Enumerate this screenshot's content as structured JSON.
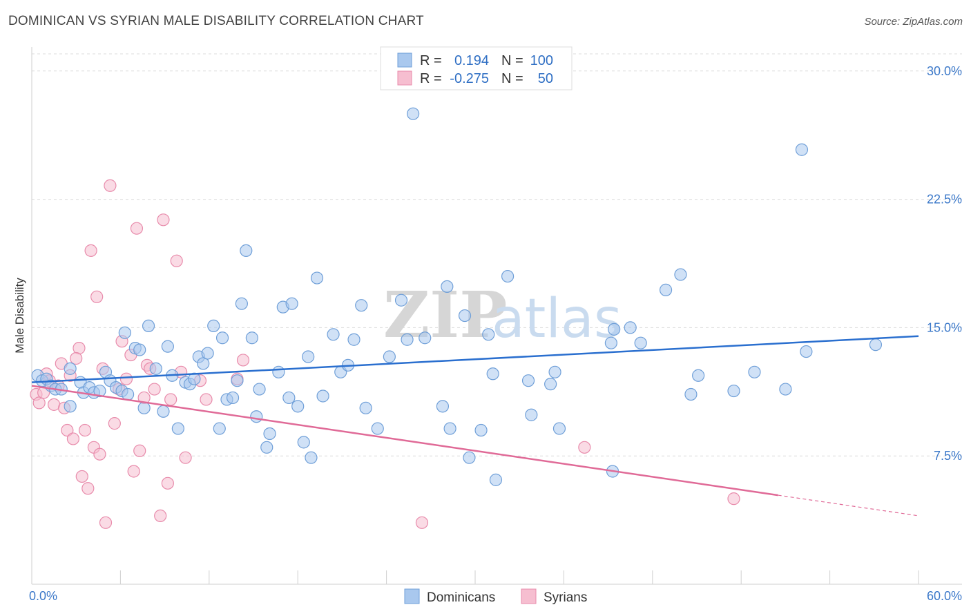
{
  "header": {
    "title": "DOMINICAN VS SYRIAN MALE DISABILITY CORRELATION CHART",
    "source": "Source: ZipAtlas.com"
  },
  "watermark": {
    "zip": "ZIP",
    "atlas": "atlas"
  },
  "colors": {
    "blue_fill": "#a9c8ee",
    "blue_stroke": "#6f9fd8",
    "blue_line": "#2a6fcf",
    "pink_fill": "#f6bed0",
    "pink_stroke": "#e88bab",
    "pink_line": "#e06a97",
    "grid": "#dcdcdc",
    "tick_text": "#3b78c9"
  },
  "legend": {
    "rows": [
      {
        "r_label": "R =",
        "r_value": "0.194",
        "n_label": "N =",
        "n_value": "100"
      },
      {
        "r_label": "R =",
        "r_value": "-0.275",
        "n_label": "N =",
        "n_value": "50"
      }
    ]
  },
  "bottom_legend": [
    "Dominicans",
    "Syrians"
  ],
  "chart_data": {
    "type": "scatter",
    "xlabel": "",
    "ylabel": "Male Disability",
    "xlim": [
      0,
      60
    ],
    "ylim": [
      0,
      31
    ],
    "x_tick_labels": {
      "min": "0.0%",
      "max": "60.0%"
    },
    "y_ticks": [
      7.5,
      15.0,
      22.5,
      30.0
    ],
    "y_tick_labels": [
      "7.5%",
      "15.0%",
      "22.5%",
      "30.0%"
    ],
    "grid": true,
    "legend_position": "top-center",
    "series": [
      {
        "name": "Dominicans",
        "color": "#a9c8ee",
        "trend": {
          "x": [
            0,
            60
          ],
          "y": [
            11.8,
            14.5
          ],
          "dashed_after": null
        },
        "points": [
          [
            0.4,
            12.2
          ],
          [
            0.7,
            11.9
          ],
          [
            1.0,
            12.0
          ],
          [
            1.3,
            11.6
          ],
          [
            1.6,
            11.4
          ],
          [
            2.0,
            11.4
          ],
          [
            2.6,
            10.4
          ],
          [
            2.6,
            12.6
          ],
          [
            3.3,
            11.8
          ],
          [
            3.5,
            11.2
          ],
          [
            3.9,
            11.5
          ],
          [
            4.2,
            11.2
          ],
          [
            4.6,
            11.3
          ],
          [
            5.0,
            12.4
          ],
          [
            5.3,
            11.9
          ],
          [
            5.7,
            11.5
          ],
          [
            6.1,
            11.3
          ],
          [
            6.3,
            14.7
          ],
          [
            6.5,
            11.1
          ],
          [
            7.0,
            13.8
          ],
          [
            7.3,
            13.7
          ],
          [
            7.6,
            10.3
          ],
          [
            7.9,
            15.1
          ],
          [
            8.4,
            12.6
          ],
          [
            8.9,
            10.1
          ],
          [
            9.2,
            13.9
          ],
          [
            9.5,
            12.2
          ],
          [
            9.9,
            9.1
          ],
          [
            10.4,
            11.8
          ],
          [
            10.7,
            11.7
          ],
          [
            11.0,
            12.0
          ],
          [
            11.3,
            13.3
          ],
          [
            11.6,
            12.9
          ],
          [
            11.9,
            13.5
          ],
          [
            12.3,
            15.1
          ],
          [
            12.7,
            9.1
          ],
          [
            12.9,
            14.4
          ],
          [
            13.2,
            10.8
          ],
          [
            13.6,
            10.9
          ],
          [
            13.9,
            11.9
          ],
          [
            14.2,
            16.4
          ],
          [
            14.5,
            19.5
          ],
          [
            14.9,
            14.4
          ],
          [
            15.2,
            9.8
          ],
          [
            15.4,
            11.4
          ],
          [
            15.9,
            8.0
          ],
          [
            16.1,
            8.8
          ],
          [
            16.7,
            12.4
          ],
          [
            17.0,
            16.2
          ],
          [
            17.4,
            10.9
          ],
          [
            17.6,
            16.4
          ],
          [
            18.0,
            10.4
          ],
          [
            18.4,
            8.3
          ],
          [
            18.7,
            13.3
          ],
          [
            18.9,
            7.4
          ],
          [
            19.3,
            17.9
          ],
          [
            19.7,
            11.0
          ],
          [
            20.4,
            14.6
          ],
          [
            20.9,
            12.4
          ],
          [
            21.4,
            12.8
          ],
          [
            21.8,
            14.3
          ],
          [
            22.3,
            16.3
          ],
          [
            22.6,
            10.3
          ],
          [
            23.4,
            9.1
          ],
          [
            24.2,
            13.3
          ],
          [
            25.0,
            16.6
          ],
          [
            25.4,
            14.3
          ],
          [
            25.8,
            27.5
          ],
          [
            26.6,
            14.4
          ],
          [
            27.8,
            10.4
          ],
          [
            28.1,
            17.4
          ],
          [
            28.3,
            9.1
          ],
          [
            29.3,
            15.7
          ],
          [
            29.6,
            7.4
          ],
          [
            30.4,
            9.0
          ],
          [
            30.9,
            14.6
          ],
          [
            31.2,
            12.3
          ],
          [
            31.4,
            6.1
          ],
          [
            32.2,
            18.0
          ],
          [
            33.6,
            11.9
          ],
          [
            33.8,
            9.9
          ],
          [
            35.1,
            11.7
          ],
          [
            35.4,
            12.4
          ],
          [
            35.7,
            9.1
          ],
          [
            39.2,
            14.1
          ],
          [
            39.3,
            6.6
          ],
          [
            39.4,
            14.9
          ],
          [
            40.5,
            15.0
          ],
          [
            41.2,
            14.1
          ],
          [
            42.9,
            17.2
          ],
          [
            43.9,
            18.1
          ],
          [
            44.6,
            11.1
          ],
          [
            45.1,
            12.2
          ],
          [
            47.5,
            11.3
          ],
          [
            48.9,
            12.4
          ],
          [
            51.0,
            11.4
          ],
          [
            52.1,
            25.4
          ],
          [
            52.4,
            13.6
          ],
          [
            57.1,
            14.0
          ]
        ]
      },
      {
        "name": "Syrians",
        "color": "#f6bed0",
        "trend": {
          "x": [
            0,
            60
          ],
          "y": [
            11.6,
            4.0
          ],
          "solid_until_x": 50.5
        },
        "points": [
          [
            0.3,
            11.1
          ],
          [
            0.5,
            10.6
          ],
          [
            0.8,
            11.2
          ],
          [
            1.0,
            12.3
          ],
          [
            1.2,
            11.9
          ],
          [
            1.5,
            10.5
          ],
          [
            1.8,
            11.6
          ],
          [
            2.0,
            12.9
          ],
          [
            2.2,
            10.3
          ],
          [
            2.4,
            9.0
          ],
          [
            2.6,
            12.2
          ],
          [
            2.8,
            8.5
          ],
          [
            3.2,
            13.8
          ],
          [
            3.4,
            6.3
          ],
          [
            3.6,
            9.0
          ],
          [
            3.8,
            5.6
          ],
          [
            4.0,
            19.5
          ],
          [
            4.2,
            8.0
          ],
          [
            4.4,
            16.8
          ],
          [
            4.6,
            7.6
          ],
          [
            4.8,
            12.6
          ],
          [
            5.0,
            3.6
          ],
          [
            5.3,
            23.3
          ],
          [
            5.6,
            9.4
          ],
          [
            5.9,
            11.4
          ],
          [
            6.1,
            14.2
          ],
          [
            6.4,
            12.0
          ],
          [
            6.7,
            13.4
          ],
          [
            6.9,
            6.6
          ],
          [
            7.1,
            20.8
          ],
          [
            7.3,
            7.8
          ],
          [
            7.6,
            10.9
          ],
          [
            7.8,
            12.8
          ],
          [
            8.0,
            12.6
          ],
          [
            8.3,
            11.4
          ],
          [
            8.7,
            4.0
          ],
          [
            8.9,
            21.3
          ],
          [
            9.2,
            5.9
          ],
          [
            9.4,
            10.8
          ],
          [
            9.8,
            18.9
          ],
          [
            10.1,
            12.4
          ],
          [
            10.4,
            7.4
          ],
          [
            11.4,
            11.9
          ],
          [
            11.8,
            10.8
          ],
          [
            13.9,
            12.0
          ],
          [
            14.3,
            13.1
          ],
          [
            26.4,
            3.6
          ],
          [
            37.4,
            8.0
          ],
          [
            47.5,
            5.0
          ],
          [
            3.0,
            13.2
          ]
        ]
      }
    ]
  }
}
